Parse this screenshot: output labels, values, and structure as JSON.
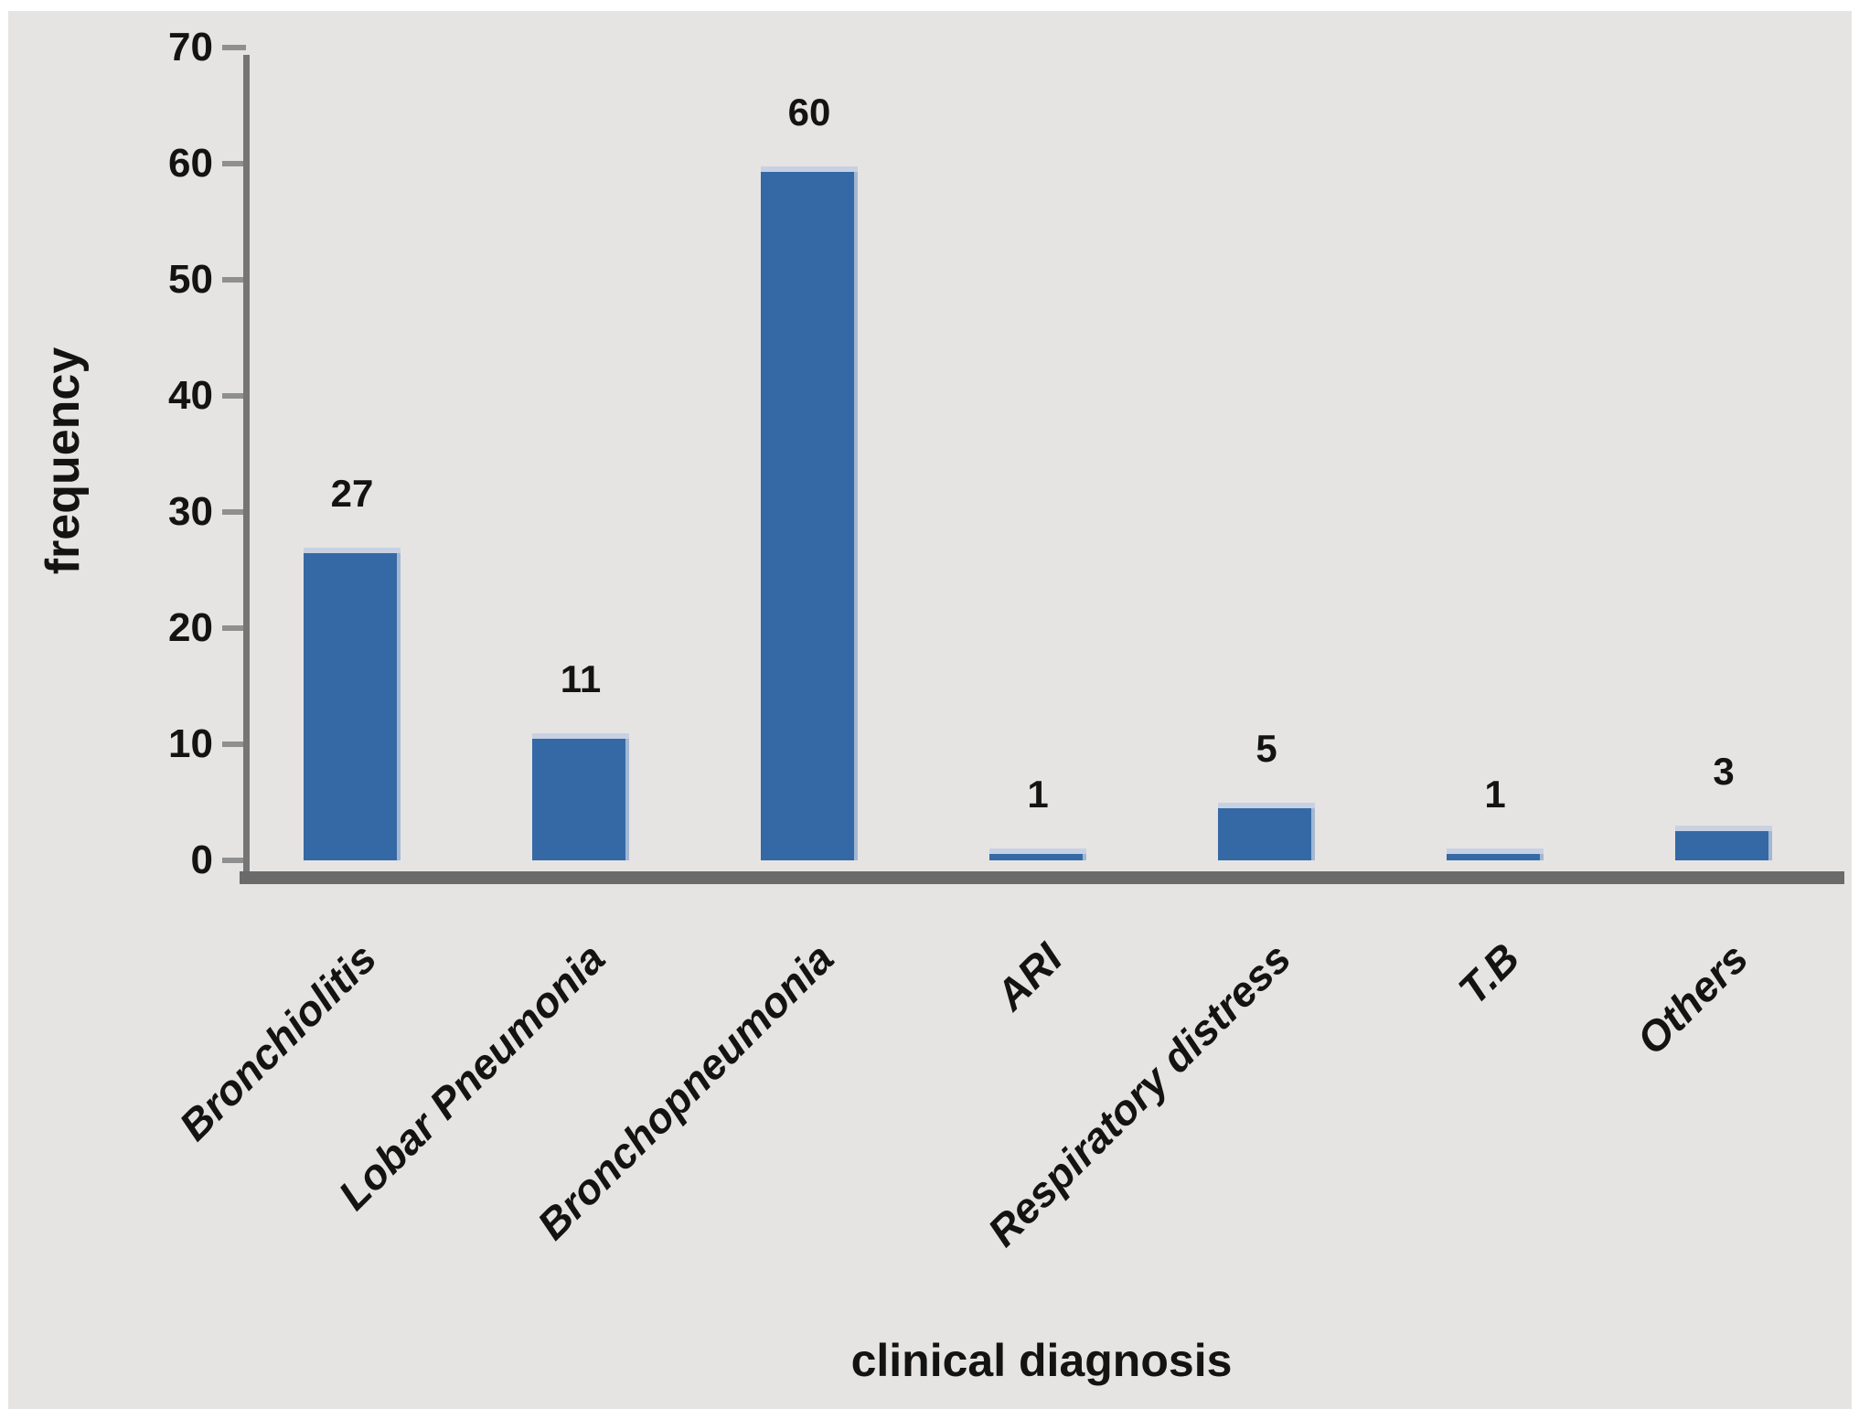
{
  "figure": {
    "page_background": "#ffffff",
    "panel_background": "#e5e4e2",
    "bar_color": "#3569a5",
    "bar_cap_color": "#c7d1e3",
    "bar_edge_color": "#a3b7d2",
    "axis_line_color": "#757575",
    "baseline_color": "#6a6a6a",
    "tick_color": "#8f8f8f",
    "text_color": "#131313"
  },
  "chart_data": {
    "type": "bar",
    "categories": [
      "Bronchiolitis",
      "Lobar Pneumonia",
      "Bronchopneumonia",
      "ARI",
      "Respiratory distress",
      "T.B",
      "Others"
    ],
    "values": [
      27,
      11,
      60,
      1,
      5,
      1,
      3
    ],
    "title": "",
    "xlabel": "clinical diagnosis",
    "ylabel": "frequency",
    "ylim": [
      0,
      70
    ],
    "yticks": [
      0,
      10,
      20,
      30,
      40,
      50,
      60,
      70
    ],
    "grid": false,
    "legend": false,
    "bar_value_labels_shown": true,
    "category_label_rotation_deg": 45
  }
}
